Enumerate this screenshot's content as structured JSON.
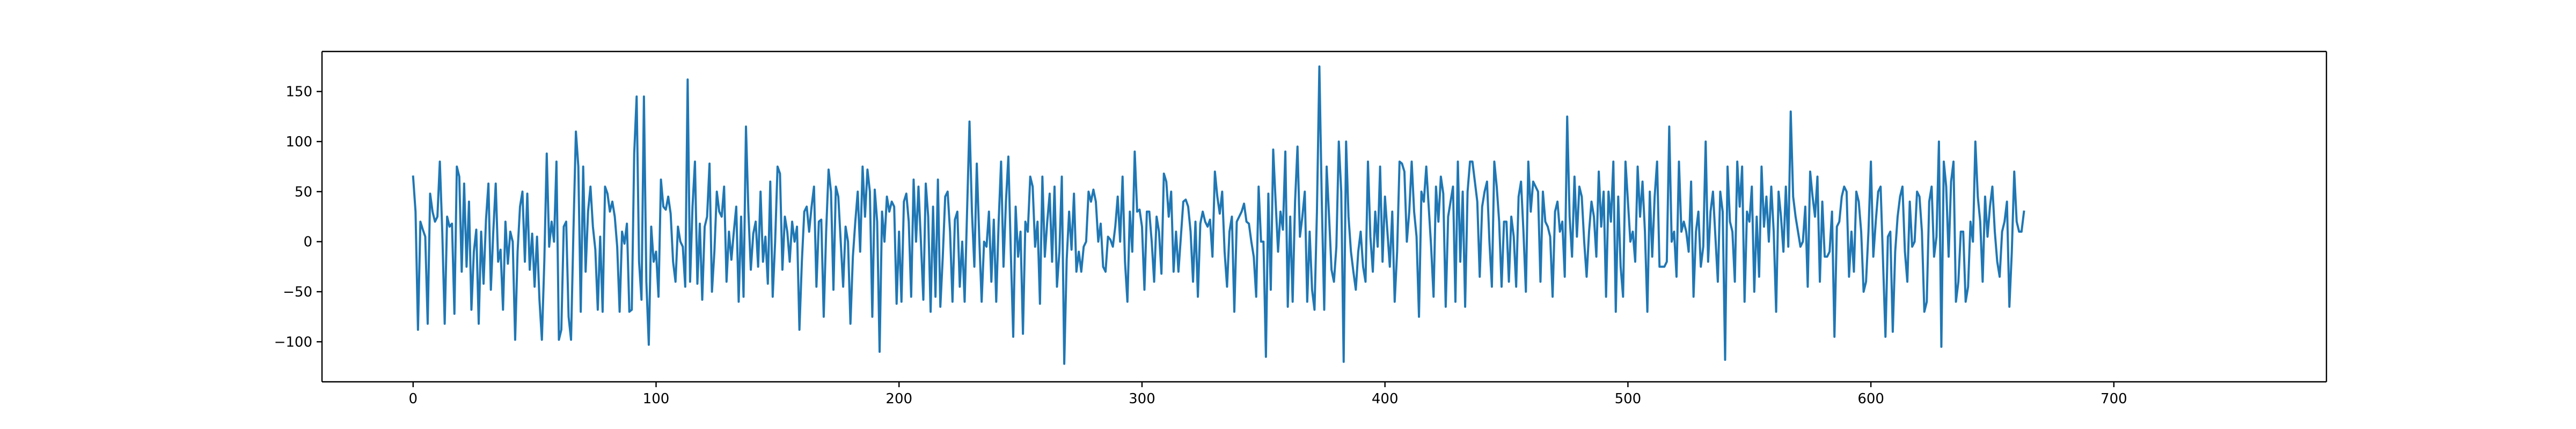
{
  "chart_data": {
    "type": "line",
    "title": "",
    "xlabel": "",
    "ylabel": "",
    "xlim": [
      -37.5,
      787.5
    ],
    "ylim": [
      -140,
      190
    ],
    "x_ticks": [
      0,
      100,
      200,
      300,
      400,
      500,
      600,
      700
    ],
    "y_ticks": [
      -100,
      -50,
      0,
      50,
      100,
      150
    ],
    "x_tick_labels": [
      "0",
      "100",
      "200",
      "300",
      "400",
      "500",
      "600",
      "700"
    ],
    "y_tick_labels": [
      "−100",
      "−50",
      "0",
      "50",
      "100",
      "150"
    ],
    "grid": false,
    "legend": "none",
    "series": [
      {
        "color": "#1f77b4",
        "x_start": 0,
        "x_step": 1,
        "values": [
          65,
          30,
          -88,
          20,
          12,
          5,
          -82,
          48,
          30,
          20,
          25,
          80,
          10,
          -82,
          25,
          15,
          18,
          -72,
          75,
          65,
          -30,
          58,
          -25,
          40,
          -68,
          -10,
          12,
          -82,
          10,
          -42,
          22,
          58,
          -48,
          10,
          58,
          -20,
          -8,
          -68,
          20,
          -22,
          10,
          0,
          -98,
          -10,
          35,
          50,
          -20,
          48,
          -28,
          8,
          -45,
          5,
          -58,
          -98,
          -20,
          88,
          -5,
          20,
          0,
          80,
          -98,
          -88,
          15,
          20,
          -75,
          -98,
          12,
          110,
          75,
          -70,
          75,
          -30,
          30,
          55,
          15,
          -8,
          -68,
          5,
          -70,
          55,
          48,
          30,
          40,
          25,
          -5,
          -70,
          10,
          -2,
          18,
          -70,
          -68,
          88,
          145,
          -20,
          -58,
          145,
          -40,
          -103,
          15,
          -20,
          -10,
          -55,
          62,
          35,
          32,
          45,
          28,
          -20,
          -40,
          15,
          0,
          -5,
          -45,
          162,
          -40,
          35,
          80,
          -42,
          18,
          -58,
          15,
          25,
          78,
          -50,
          -10,
          50,
          30,
          25,
          55,
          -40,
          10,
          -18,
          10,
          35,
          -60,
          25,
          -55,
          115,
          30,
          -28,
          8,
          20,
          -25,
          50,
          -20,
          5,
          -42,
          60,
          -55,
          0,
          75,
          68,
          -28,
          25,
          10,
          -20,
          20,
          0,
          15,
          -88,
          -20,
          30,
          35,
          10,
          35,
          55,
          -45,
          20,
          22,
          -75,
          10,
          72,
          50,
          -48,
          55,
          45,
          0,
          -45,
          15,
          0,
          -82,
          -15,
          20,
          50,
          -10,
          75,
          25,
          72,
          50,
          -75,
          52,
          20,
          -110,
          30,
          0,
          45,
          30,
          40,
          35,
          -62,
          10,
          -60,
          40,
          48,
          20,
          -55,
          62,
          0,
          55,
          0,
          -58,
          58,
          25,
          -70,
          35,
          -55,
          62,
          -65,
          -15,
          45,
          50,
          10,
          -60,
          22,
          30,
          -45,
          0,
          -60,
          30,
          120,
          30,
          -25,
          78,
          5,
          -60,
          0,
          -5,
          30,
          -40,
          22,
          -60,
          20,
          80,
          -25,
          40,
          85,
          -10,
          -95,
          35,
          -15,
          10,
          -92,
          20,
          10,
          65,
          55,
          -5,
          20,
          -62,
          65,
          -15,
          20,
          48,
          -20,
          55,
          -45,
          -10,
          65,
          -122,
          -18,
          30,
          -8,
          48,
          -30,
          -10,
          -30,
          -5,
          0,
          50,
          40,
          52,
          40,
          0,
          18,
          -25,
          -30,
          5,
          2,
          -5,
          15,
          45,
          0,
          65,
          -20,
          -60,
          30,
          -10,
          90,
          30,
          32,
          15,
          -48,
          30,
          30,
          0,
          -40,
          25,
          10,
          -32,
          68,
          60,
          25,
          50,
          -30,
          10,
          -30,
          5,
          40,
          42,
          35,
          10,
          -40,
          20,
          -55,
          18,
          30,
          20,
          15,
          22,
          -15,
          70,
          45,
          28,
          50,
          -10,
          -45,
          10,
          25,
          -70,
          20,
          25,
          30,
          38,
          20,
          18,
          0,
          -15,
          -55,
          55,
          0,
          0,
          -115,
          48,
          -48,
          92,
          40,
          -10,
          30,
          12,
          90,
          -65,
          25,
          -60,
          40,
          95,
          5,
          25,
          50,
          -60,
          10,
          -48,
          -68,
          30,
          175,
          40,
          -68,
          75,
          25,
          -28,
          -40,
          -5,
          100,
          50,
          -120,
          100,
          25,
          -10,
          -30,
          -48,
          -10,
          10,
          -25,
          -40,
          80,
          5,
          -30,
          30,
          -5,
          75,
          -20,
          45,
          10,
          -25,
          30,
          -60,
          -10,
          80,
          78,
          70,
          0,
          30,
          80,
          30,
          5,
          -75,
          50,
          40,
          75,
          35,
          -5,
          -55,
          55,
          20,
          65,
          48,
          -65,
          25,
          40,
          55,
          -60,
          80,
          -20,
          50,
          -65,
          50,
          80,
          80,
          60,
          40,
          -35,
          35,
          50,
          60,
          0,
          -45,
          80,
          55,
          20,
          -45,
          20,
          20,
          -40,
          25,
          5,
          -45,
          45,
          60,
          10,
          -50,
          80,
          30,
          60,
          55,
          50,
          -40,
          50,
          20,
          15,
          5,
          -55,
          30,
          40,
          10,
          20,
          -35,
          125,
          25,
          -15,
          65,
          5,
          55,
          45,
          0,
          -35,
          10,
          40,
          25,
          -15,
          70,
          15,
          50,
          -55,
          50,
          20,
          80,
          -70,
          45,
          -25,
          -55,
          80,
          40,
          0,
          10,
          -20,
          75,
          25,
          60,
          10,
          -70,
          50,
          -15,
          45,
          80,
          -25,
          -25,
          -25,
          -20,
          115,
          0,
          10,
          -35,
          80,
          10,
          20,
          10,
          -10,
          60,
          -55,
          10,
          30,
          -25,
          -5,
          100,
          -20,
          30,
          50,
          5,
          -40,
          50,
          30,
          -118,
          75,
          20,
          10,
          -40,
          80,
          35,
          75,
          -60,
          30,
          20,
          55,
          -50,
          25,
          -35,
          75,
          15,
          45,
          0,
          55,
          10,
          -70,
          50,
          25,
          -10,
          55,
          -5,
          130,
          45,
          25,
          10,
          -5,
          0,
          35,
          -45,
          70,
          45,
          25,
          65,
          -40,
          40,
          -15,
          -15,
          -10,
          30,
          -95,
          15,
          20,
          45,
          55,
          50,
          -35,
          10,
          -30,
          50,
          40,
          10,
          -50,
          -40,
          10,
          80,
          -15,
          20,
          50,
          55,
          -20,
          -95,
          5,
          10,
          -90,
          -10,
          25,
          45,
          55,
          -10,
          -40,
          40,
          -5,
          0,
          50,
          45,
          10,
          -70,
          -60,
          40,
          55,
          -15,
          5,
          100,
          -105,
          80,
          55,
          -15,
          60,
          80,
          -60,
          -40,
          10,
          10,
          -60,
          -45,
          20,
          0,
          100,
          45,
          20,
          -40,
          45,
          5,
          35,
          55,
          10,
          -20,
          -35,
          10,
          20,
          40,
          -65,
          -10,
          70,
          20,
          10,
          10,
          30
        ]
      }
    ]
  }
}
